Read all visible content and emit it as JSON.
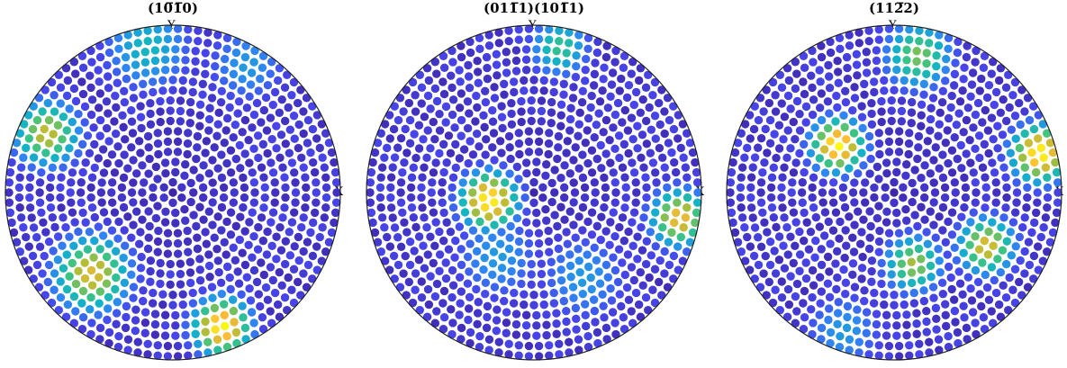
{
  "chart_data": [
    {
      "type": "scatter",
      "title": "(10̅1̅0)",
      "axis_x_label": "X",
      "axis_y_label": "Y",
      "rings": 16,
      "colormap": [
        "#3e26a8",
        "#4746eb",
        "#2f86f3",
        "#12b3c6",
        "#3cc383",
        "#b4bd36",
        "#fdba37",
        "#f9fb15"
      ],
      "hotspots": [
        {
          "az": 155,
          "r": 0.85,
          "w": 0.35,
          "level": 0.75
        },
        {
          "az": 225,
          "r": 0.7,
          "w": 0.4,
          "level": 0.8
        },
        {
          "az": 290,
          "r": 0.87,
          "w": 0.3,
          "level": 1.0
        },
        {
          "az": 100,
          "r": 0.9,
          "w": 0.45,
          "level": 0.45
        },
        {
          "az": 60,
          "r": 0.9,
          "w": 0.4,
          "level": 0.35
        }
      ]
    },
    {
      "type": "scatter",
      "title": "(011̅1)(101̅1)",
      "axis_x_label": "X",
      "axis_y_label": "Y",
      "rings": 16,
      "colormap": [
        "#3e26a8",
        "#4746eb",
        "#2f86f3",
        "#12b3c6",
        "#3cc383",
        "#b4bd36",
        "#fdba37",
        "#f9fb15"
      ],
      "hotspots": [
        {
          "az": 190,
          "r": 0.28,
          "w": 0.3,
          "level": 1.0
        },
        {
          "az": 350,
          "r": 0.9,
          "w": 0.3,
          "level": 0.85
        },
        {
          "az": 80,
          "r": 0.9,
          "w": 0.3,
          "level": 0.55
        },
        {
          "az": 240,
          "r": 0.45,
          "w": 0.45,
          "level": 0.35
        },
        {
          "az": 300,
          "r": 0.6,
          "w": 0.45,
          "level": 0.35
        }
      ]
    },
    {
      "type": "scatter",
      "title": "(112̅2)",
      "axis_x_label": "X",
      "axis_y_label": "Y",
      "rings": 16,
      "colormap": [
        "#3e26a8",
        "#4746eb",
        "#2f86f3",
        "#12b3c6",
        "#3cc383",
        "#b4bd36",
        "#fdba37",
        "#f9fb15"
      ],
      "hotspots": [
        {
          "az": 140,
          "r": 0.45,
          "w": 0.28,
          "level": 1.0
        },
        {
          "az": 15,
          "r": 0.92,
          "w": 0.3,
          "level": 1.0
        },
        {
          "az": 330,
          "r": 0.65,
          "w": 0.3,
          "level": 0.8
        },
        {
          "az": 285,
          "r": 0.45,
          "w": 0.3,
          "level": 0.7
        },
        {
          "az": 80,
          "r": 0.85,
          "w": 0.35,
          "level": 0.65
        },
        {
          "az": 250,
          "r": 0.9,
          "w": 0.4,
          "level": 0.35
        }
      ]
    }
  ]
}
